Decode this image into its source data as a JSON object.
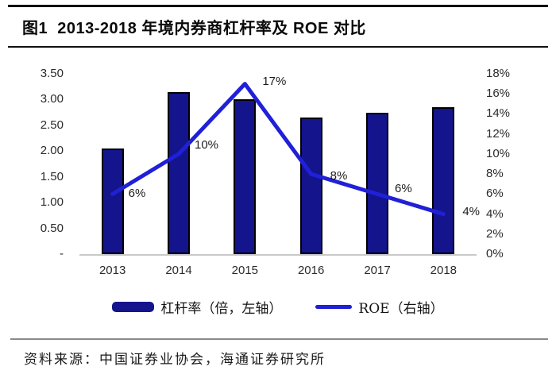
{
  "figure": {
    "title": "图1  2013-2018 年境内券商杠杆率及 ROE 对比",
    "source": "资料来源：中国证券业协会，海通证券研究所"
  },
  "legend": {
    "items": [
      {
        "label": "杠杆率（倍，左轴）",
        "swatch": "bar",
        "color": "#14148c"
      },
      {
        "label": "ROE（右轴）",
        "swatch": "line",
        "color": "#2020d8"
      }
    ]
  },
  "chart_data": {
    "type": "bar",
    "categories": [
      "2013",
      "2014",
      "2015",
      "2016",
      "2017",
      "2018"
    ],
    "series": [
      {
        "name": "杠杆率（倍，左轴）",
        "type": "bar",
        "axis": "left",
        "values": [
          2.05,
          3.15,
          3.0,
          2.65,
          2.75,
          2.85
        ],
        "color": "#14148c"
      },
      {
        "name": "ROE（右轴）",
        "type": "line",
        "axis": "right",
        "values": [
          6,
          10,
          17,
          8,
          6,
          4
        ],
        "point_labels": [
          "6%",
          "10%",
          "17%",
          "8%",
          "6%",
          "4%"
        ],
        "color": "#2020d8"
      }
    ],
    "left_axis": {
      "max": 3.5,
      "min": 0,
      "ticks": [
        {
          "label": "3.50",
          "value": 3.5
        },
        {
          "label": "3.00",
          "value": 3.0
        },
        {
          "label": "2.50",
          "value": 2.5
        },
        {
          "label": "2.00",
          "value": 2.0
        },
        {
          "label": "1.50",
          "value": 1.5
        },
        {
          "label": "1.00",
          "value": 1.0
        },
        {
          "label": "0.50",
          "value": 0.5
        },
        {
          "label": "-",
          "value": 0
        }
      ]
    },
    "right_axis": {
      "max": 18,
      "min": 0,
      "ticks": [
        {
          "label": "18%",
          "value": 18
        },
        {
          "label": "16%",
          "value": 16
        },
        {
          "label": "14%",
          "value": 14
        },
        {
          "label": "12%",
          "value": 12
        },
        {
          "label": "10%",
          "value": 10
        },
        {
          "label": "8%",
          "value": 8
        },
        {
          "label": "6%",
          "value": 6
        },
        {
          "label": "4%",
          "value": 4
        },
        {
          "label": "2%",
          "value": 2
        },
        {
          "label": "0%",
          "value": 0
        }
      ]
    },
    "grid": false,
    "legend_position": "bottom",
    "title": "图1  2013-2018 年境内券商杠杆率及 ROE 对比"
  }
}
